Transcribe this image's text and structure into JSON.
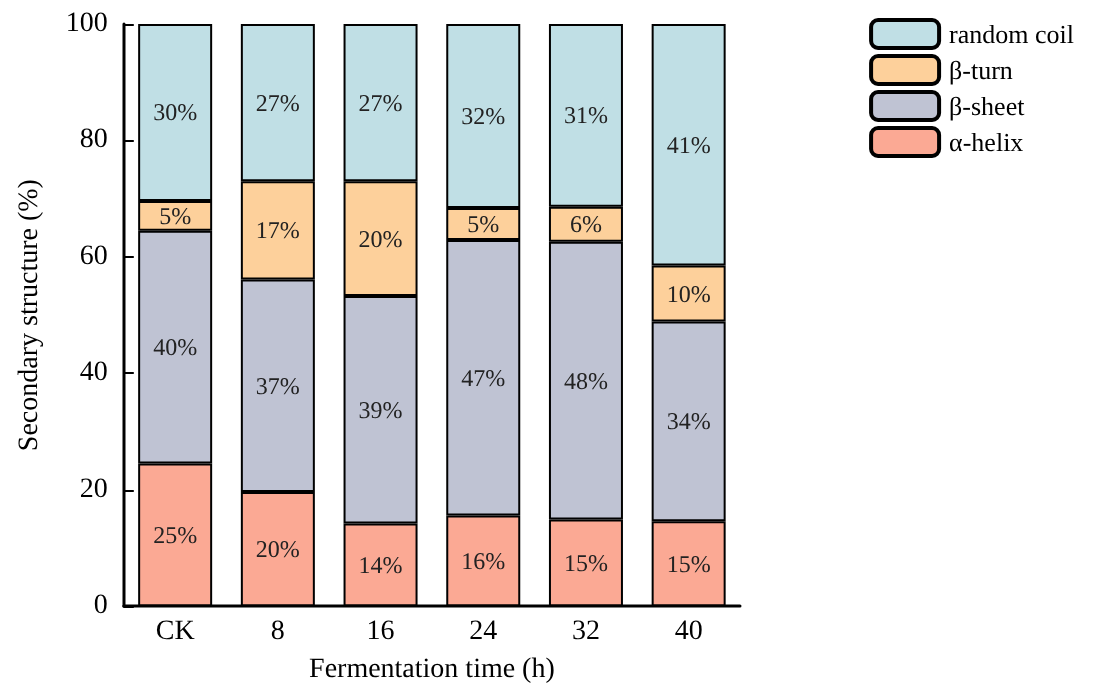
{
  "chart_data": {
    "type": "bar",
    "stacked": true,
    "xlabel": "Fermentation time (h)",
    "ylabel": "Secondary structure (%)",
    "categories": [
      "CK",
      "8",
      "16",
      "24",
      "32",
      "40"
    ],
    "series": [
      {
        "name": "α-helix",
        "color": "#fba994",
        "values": [
          24.5,
          19.6,
          14.2,
          15.6,
          14.9,
          14.6
        ],
        "value_labels": [
          "25%",
          "20%",
          "14%",
          "16%",
          "15%",
          "15%"
        ]
      },
      {
        "name": "β-sheet",
        "color": "#bfc3d3",
        "values": [
          40.0,
          36.5,
          39.1,
          47.3,
          47.7,
          34.3
        ],
        "value_labels": [
          "40%",
          "37%",
          "39%",
          "47%",
          "48%",
          "34%"
        ]
      },
      {
        "name": "β-turn",
        "color": "#fdd09b",
        "values": [
          5.1,
          16.9,
          19.7,
          5.5,
          6.0,
          9.6
        ],
        "value_labels": [
          "5%",
          "17%",
          "20%",
          "5%",
          "6%",
          "10%"
        ]
      },
      {
        "name": "random coil",
        "color": "#c0dfe5",
        "values": [
          30.4,
          27.0,
          27.0,
          31.6,
          31.4,
          41.5
        ],
        "value_labels": [
          "30%",
          "27%",
          "27%",
          "32%",
          "31%",
          "41%"
        ]
      }
    ],
    "ylim": [
      0,
      100
    ],
    "yticks": [
      0,
      20,
      40,
      60,
      80,
      100
    ],
    "grid": false,
    "legend": "top right"
  }
}
